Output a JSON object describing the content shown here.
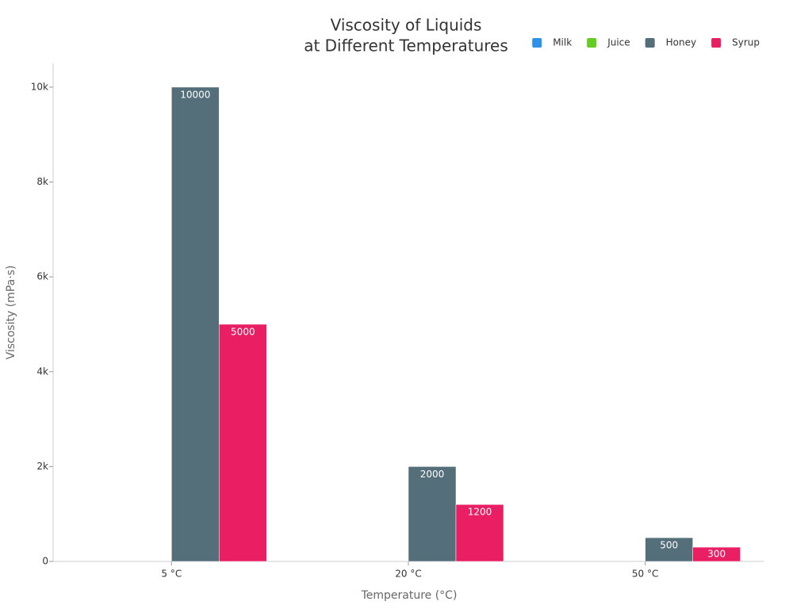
{
  "chart_data": {
    "type": "bar",
    "title": [
      "Viscosity of Liquids",
      "at Different Temperatures"
    ],
    "x_label": "Temperature (°C)",
    "y_label": "Viscosity (mPa·s)",
    "categories": [
      "5 °C",
      "20 °C",
      "50 °C"
    ],
    "series": [
      {
        "name": "Milk",
        "color": "#2e93e8",
        "values": [
          0,
          0,
          0
        ]
      },
      {
        "name": "Juice",
        "color": "#66cc22",
        "values": [
          0,
          0,
          0
        ]
      },
      {
        "name": "Honey",
        "color": "#546e7a",
        "values": [
          10000,
          2000,
          500
        ]
      },
      {
        "name": "Syrup",
        "color": "#e91e63",
        "values": [
          5000,
          1200,
          300
        ]
      }
    ],
    "ylim": [
      0,
      10500
    ],
    "yticks": [
      0,
      {
        "value": 2000,
        "label": "2k"
      },
      {
        "value": 4000,
        "label": "4k"
      },
      {
        "value": 6000,
        "label": "6k"
      },
      {
        "value": 8000,
        "label": "8k"
      },
      {
        "value": 10000,
        "label": "10k"
      }
    ],
    "legend": "top-right"
  }
}
